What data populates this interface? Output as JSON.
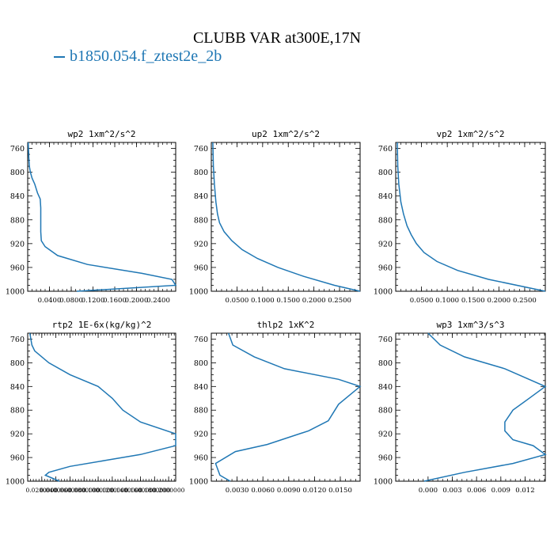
{
  "title": "CLUBB VAR at300E,17N",
  "legend": {
    "label": "b1850.054.f_ztest2e_2b",
    "color": "#1f77b4"
  },
  "chart_data": [
    {
      "type": "line",
      "title": "wp2  1xm^2/s^2",
      "ylim": [
        1000,
        750
      ],
      "yticks": [
        760,
        800,
        840,
        880,
        920,
        960,
        1000
      ],
      "xlim": [
        0.0,
        0.272
      ],
      "xticks": [
        0.04,
        0.08,
        0.12,
        0.16,
        0.2,
        0.24
      ],
      "xticklabels": [
        "0.0400",
        "0.0800",
        "0.1200",
        "0.1600",
        "0.2000",
        "0.2400"
      ],
      "series": [
        {
          "color": "#1f77b4",
          "y": [
            750,
            775,
            790,
            800,
            810,
            820,
            835,
            845,
            860,
            880,
            900,
            915,
            925,
            940,
            955,
            970,
            980,
            990,
            1000
          ],
          "x": [
            0.001,
            0.002,
            0.003,
            0.005,
            0.008,
            0.013,
            0.018,
            0.023,
            0.024,
            0.024,
            0.024,
            0.025,
            0.032,
            0.055,
            0.11,
            0.21,
            0.265,
            0.272,
            0.09
          ]
        }
      ]
    },
    {
      "type": "line",
      "title": "up2  1xm^2/s^2",
      "ylim": [
        1000,
        750
      ],
      "yticks": [
        760,
        800,
        840,
        880,
        920,
        960,
        1000
      ],
      "xlim": [
        0.0,
        0.29
      ],
      "xticks": [
        0.05,
        0.1,
        0.15,
        0.2,
        0.25
      ],
      "xticklabels": [
        "0.0500",
        "0.1000",
        "0.1500",
        "0.2000",
        "0.2500"
      ],
      "series": [
        {
          "color": "#1f77b4",
          "y": [
            750,
            790,
            820,
            850,
            870,
            885,
            900,
            915,
            930,
            945,
            960,
            975,
            990,
            1000
          ],
          "x": [
            0.003,
            0.004,
            0.006,
            0.009,
            0.012,
            0.016,
            0.025,
            0.04,
            0.06,
            0.09,
            0.13,
            0.18,
            0.24,
            0.29
          ]
        }
      ]
    },
    {
      "type": "line",
      "title": "vp2  1xm^2/s^2",
      "ylim": [
        1000,
        750
      ],
      "yticks": [
        760,
        800,
        840,
        880,
        920,
        960,
        1000
      ],
      "xlim": [
        0.0,
        0.29
      ],
      "xticks": [
        0.05,
        0.1,
        0.15,
        0.2,
        0.25
      ],
      "xticklabels": [
        "0.0500",
        "0.1000",
        "0.1500",
        "0.2000",
        "0.2500"
      ],
      "series": [
        {
          "color": "#1f77b4",
          "y": [
            750,
            790,
            820,
            850,
            870,
            890,
            905,
            920,
            935,
            950,
            965,
            980,
            1000
          ],
          "x": [
            0.003,
            0.004,
            0.006,
            0.01,
            0.015,
            0.022,
            0.03,
            0.04,
            0.055,
            0.08,
            0.12,
            0.18,
            0.29
          ]
        }
      ]
    },
    {
      "type": "line",
      "title": "rtp2  1E-6x(kg/kg)^2",
      "ylim": [
        1000,
        750
      ],
      "yticks": [
        760,
        800,
        840,
        880,
        920,
        960,
        1000
      ],
      "xlim": [
        0.0,
        0.21
      ],
      "xticks": [
        0.02,
        0.04,
        0.06,
        0.08,
        0.1,
        0.12,
        0.14,
        0.16,
        0.18,
        0.2
      ],
      "xticklabels": [
        "0.0200000",
        "0.0400000",
        "0.0600000",
        "0.0800000",
        "0.1000000",
        "0.1200000",
        "0.1400000",
        "0.1600000",
        "0.1800000",
        "0.2000000"
      ],
      "series": [
        {
          "color": "#1f77b4",
          "y": [
            750,
            770,
            780,
            800,
            820,
            840,
            860,
            880,
            900,
            920,
            940,
            955,
            965,
            975,
            985,
            990,
            1000
          ],
          "x": [
            0.003,
            0.006,
            0.01,
            0.03,
            0.06,
            0.1,
            0.12,
            0.135,
            0.16,
            0.21,
            0.21,
            0.16,
            0.11,
            0.06,
            0.03,
            0.025,
            0.045
          ]
        }
      ]
    },
    {
      "type": "line",
      "title": "thlp2  1xK^2",
      "ylim": [
        1000,
        750
      ],
      "yticks": [
        760,
        800,
        840,
        880,
        920,
        960,
        1000
      ],
      "xlim": [
        0.0,
        0.0173
      ],
      "xticks": [
        0.003,
        0.006,
        0.009,
        0.012,
        0.015
      ],
      "xticklabels": [
        "0.0030",
        "0.0060",
        "0.0090",
        "0.0120",
        "0.0150"
      ],
      "series": [
        {
          "color": "#1f77b4",
          "y": [
            750,
            770,
            790,
            810,
            828,
            840,
            870,
            898,
            915,
            938,
            950,
            970,
            990,
            1000
          ],
          "x": [
            0.002,
            0.0025,
            0.005,
            0.0085,
            0.0148,
            0.0173,
            0.0148,
            0.0136,
            0.0113,
            0.0065,
            0.0028,
            0.0005,
            0.001,
            0.0022
          ]
        }
      ]
    },
    {
      "type": "line",
      "title": "wp3  1xm^3/s^3",
      "ylim": [
        1000,
        750
      ],
      "yticks": [
        760,
        800,
        840,
        880,
        920,
        960,
        1000
      ],
      "xlim": [
        -0.004,
        0.0145
      ],
      "xticks": [
        0.0,
        0.003,
        0.006,
        0.009,
        0.012
      ],
      "xticklabels": [
        "0.000",
        "0.003",
        "0.006",
        "0.009",
        "0.012"
      ],
      "series": [
        {
          "color": "#1f77b4",
          "y": [
            750,
            770,
            790,
            810,
            840,
            860,
            880,
            900,
            915,
            930,
            940,
            955,
            970,
            985,
            1000
          ],
          "x": [
            0.0,
            0.0015,
            0.0045,
            0.0095,
            0.0145,
            0.0125,
            0.0105,
            0.0095,
            0.0095,
            0.0105,
            0.013,
            0.0145,
            0.0105,
            0.0045,
            -0.0005
          ]
        }
      ]
    }
  ]
}
